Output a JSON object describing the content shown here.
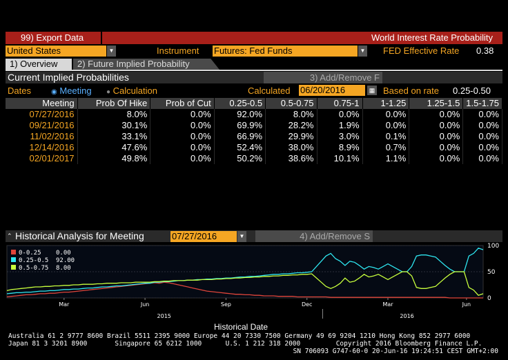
{
  "toolbar": {
    "export_label": "99) Export Data",
    "title": "World Interest Rate Probability"
  },
  "selector": {
    "country": "United States",
    "instrument_label": "Instrument",
    "instrument_value": "Futures: Fed Funds",
    "fed_rate_label": "FED Effective Rate",
    "fed_rate_value": "0.38"
  },
  "tabs": [
    {
      "label": "1) Overview"
    },
    {
      "label": "2) Future Implied Probability"
    }
  ],
  "cip": {
    "title": "Current Implied Probabilities",
    "add_remove": "3) Add/Remove F",
    "dates_label": "Dates",
    "radio_meeting": "Meeting",
    "radio_calculation": "Calculation",
    "calculated_label": "Calculated",
    "calculated_value": "06/20/2016",
    "based_label": "Based on rate",
    "based_value": "0.25-0.50"
  },
  "table": {
    "headers": [
      "Meeting",
      "Prob Of Hike",
      "Prob of Cut",
      "0.25-0.5",
      "0.5-0.75",
      "0.75-1",
      "1-1.25",
      "1.25-1.5",
      "1.5-1.75"
    ],
    "rows": [
      [
        "07/27/2016",
        "8.0%",
        "0.0%",
        "92.0%",
        "8.0%",
        "0.0%",
        "0.0%",
        "0.0%",
        "0.0%"
      ],
      [
        "09/21/2016",
        "30.1%",
        "0.0%",
        "69.9%",
        "28.2%",
        "1.9%",
        "0.0%",
        "0.0%",
        "0.0%"
      ],
      [
        "11/02/2016",
        "33.1%",
        "0.0%",
        "66.9%",
        "29.9%",
        "3.0%",
        "0.1%",
        "0.0%",
        "0.0%"
      ],
      [
        "12/14/2016",
        "47.6%",
        "0.0%",
        "52.4%",
        "38.0%",
        "8.9%",
        "0.7%",
        "0.0%",
        "0.0%"
      ],
      [
        "02/01/2017",
        "49.8%",
        "0.0%",
        "50.2%",
        "38.6%",
        "10.1%",
        "1.1%",
        "0.0%",
        "0.0%"
      ]
    ]
  },
  "historical": {
    "title": "Historical Analysis for Meeting",
    "meeting_value": "07/27/2016",
    "add_remove": "4) Add/Remove S",
    "xlabel": "Historical Date"
  },
  "chart_data": {
    "type": "line",
    "ylim": [
      0,
      100
    ],
    "y_ticks": [
      "0",
      "50",
      "100"
    ],
    "x_tick_labels": [
      "Mar",
      "Jun",
      "Sep",
      "Dec",
      "Mar",
      "Jun"
    ],
    "year_labels": [
      "2015",
      "2016"
    ],
    "legend": [
      {
        "name": "0-0.25",
        "value": "0.00",
        "color": "#e0453a"
      },
      {
        "name": "0.25-0.5",
        "value": "92.00",
        "color": "#2ee6f0"
      },
      {
        "name": "0.5-0.75",
        "value": "8.00",
        "color": "#c8ff3c"
      }
    ],
    "x": [
      0,
      1,
      2,
      3,
      4,
      5,
      6,
      7,
      8,
      9,
      10,
      11,
      12,
      13,
      14,
      15,
      16,
      17,
      18,
      19,
      20,
      21,
      22,
      23,
      24,
      25,
      26,
      27,
      28,
      29,
      30,
      31,
      32,
      33,
      34,
      35,
      36,
      37,
      38,
      39,
      40,
      41,
      42,
      43,
      44,
      45,
      46,
      47,
      48,
      49,
      50,
      51,
      52,
      53,
      54,
      55,
      56,
      57,
      58,
      59,
      60,
      61,
      62,
      63,
      64,
      65,
      66,
      67,
      68,
      69,
      70,
      71,
      72,
      73,
      74,
      75,
      76,
      77,
      78,
      79,
      80,
      81,
      82,
      83,
      84,
      85,
      86,
      87,
      88,
      89,
      90,
      91,
      92,
      93,
      94,
      95,
      96,
      97,
      98,
      99,
      100
    ],
    "series": [
      {
        "name": "0-0.25",
        "values": [
          2,
          3,
          4,
          5,
          6,
          6,
          7,
          8,
          8,
          9,
          9,
          10,
          11,
          11,
          12,
          13,
          14,
          15,
          16,
          17,
          18,
          19,
          20,
          21,
          22,
          23,
          24,
          25,
          26,
          27,
          28,
          29,
          28,
          30,
          29,
          27,
          25,
          23,
          21,
          19,
          17,
          15,
          13,
          12,
          11,
          10,
          9,
          8,
          7,
          7,
          6,
          6,
          5,
          5,
          4,
          4,
          4,
          3,
          3,
          3,
          3,
          2,
          2,
          2,
          2,
          2,
          2,
          2,
          1,
          1,
          1,
          1,
          1,
          1,
          1,
          1,
          1,
          1,
          1,
          1,
          1,
          1,
          1,
          1,
          1,
          1,
          1,
          1,
          1,
          1,
          1,
          1,
          1,
          0,
          0,
          0,
          0,
          0,
          0,
          0,
          0
        ]
      },
      {
        "name": "0.25-0.5",
        "values": [
          8,
          9,
          10,
          10,
          11,
          11,
          12,
          13,
          13,
          14,
          14,
          15,
          16,
          16,
          17,
          17,
          18,
          19,
          19,
          20,
          21,
          21,
          22,
          23,
          23,
          24,
          25,
          26,
          27,
          28,
          28,
          30,
          30,
          31,
          31,
          32,
          33,
          33,
          34,
          34,
          35,
          35,
          36,
          36,
          37,
          37,
          38,
          38,
          39,
          40,
          40,
          41,
          41,
          42,
          43,
          44,
          45,
          45,
          46,
          46,
          47,
          48,
          48,
          49,
          50,
          60,
          70,
          80,
          85,
          75,
          70,
          62,
          70,
          68,
          62,
          55,
          60,
          58,
          55,
          60,
          65,
          60,
          55,
          50,
          50,
          60,
          80,
          82,
          82,
          80,
          78,
          70,
          62,
          55,
          50,
          50,
          50,
          80,
          85,
          95,
          92
        ]
      },
      {
        "name": "0.5-0.75",
        "values": [
          14,
          16,
          17,
          18,
          19,
          20,
          21,
          21,
          22,
          22,
          23,
          23,
          24,
          24,
          25,
          25,
          26,
          26,
          26,
          27,
          27,
          28,
          28,
          28,
          29,
          29,
          29,
          30,
          30,
          30,
          30,
          31,
          31,
          32,
          32,
          33,
          33,
          33,
          34,
          34,
          34,
          35,
          35,
          35,
          36,
          36,
          37,
          37,
          38,
          38,
          39,
          39,
          40,
          40,
          41,
          41,
          42,
          42,
          43,
          43,
          44,
          44,
          45,
          45,
          46,
          38,
          30,
          22,
          18,
          22,
          28,
          38,
          30,
          32,
          38,
          45,
          40,
          42,
          45,
          40,
          35,
          40,
          45,
          50,
          50,
          42,
          20,
          18,
          18,
          20,
          22,
          30,
          38,
          45,
          50,
          50,
          50,
          20,
          15,
          5,
          8
        ]
      }
    ]
  },
  "footer": {
    "line1": "Australia 61 2 9777 8600 Brazil 5511 2395 9000 Europe 44 20 7330 7500 Germany 49 69 9204 1210 Hong Kong 852 2977 6000",
    "line2": "Japan 81 3 3201 8900       Singapore 65 6212 1000      U.S. 1 212 318 2000         Copyright 2016 Bloomberg Finance L.P.",
    "line3": "SN 706093 G747-60-0 20-Jun-16 19:24:51 CEST GMT+2:00"
  }
}
